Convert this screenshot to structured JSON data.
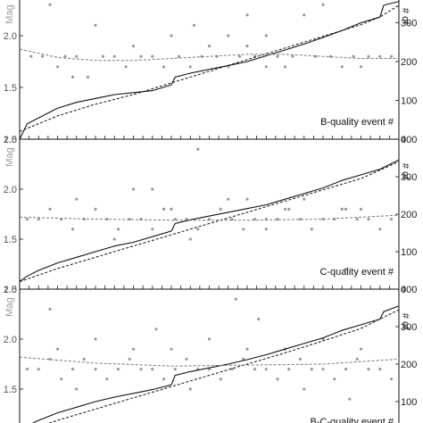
{
  "figure": {
    "panels": [
      {
        "xlabel": "B-quality event #",
        "ylabel_left": "Mag",
        "ylabel_right": "# of"
      },
      {
        "xlabel": "C-quality event #",
        "ylabel_left": "Mag",
        "ylabel_right": "# of"
      },
      {
        "xlabel": "B-C-quality event #",
        "ylabel_left": "Mag",
        "ylabel_right": "# of"
      }
    ]
  },
  "chart_data": [
    {
      "type": "scatter",
      "xlabel": "B-quality event #",
      "ylabel": "Mag",
      "ylabel_right": "# of",
      "xlim": [
        0,
        100
      ],
      "ylim": [
        1.0,
        2.5
      ],
      "ylim_right": [
        0,
        400
      ],
      "yticks": [
        "1.0",
        "1.5",
        "2.0"
      ],
      "yticks_right": [
        "0",
        "100",
        "200",
        "300"
      ],
      "colors": {
        "points": "#9a9a9a",
        "line": "#111111"
      },
      "series": [
        {
          "type": "scatter",
          "x": [
            3,
            6,
            8,
            12,
            15,
            18,
            22,
            25,
            28,
            32,
            35,
            38,
            42,
            45,
            48,
            52,
            55,
            58,
            62,
            65,
            68,
            72,
            75,
            78,
            82,
            85,
            88,
            92,
            95,
            98,
            10,
            30,
            50,
            70,
            90,
            20,
            40,
            60,
            80,
            55,
            60,
            65,
            14,
            46
          ],
          "y": [
            1.8,
            1.8,
            2.3,
            1.8,
            1.8,
            1.6,
            1.8,
            1.8,
            1.7,
            1.8,
            1.8,
            1.7,
            1.8,
            1.7,
            1.8,
            1.8,
            1.7,
            1.8,
            1.8,
            1.7,
            1.8,
            1.8,
            2.2,
            1.8,
            1.8,
            1.7,
            1.8,
            1.8,
            1.8,
            1.8,
            1.7,
            1.9,
            1.9,
            1.7,
            1.7,
            2.1,
            2.0,
            2.2,
            2.3,
            2.0,
            1.9,
            2.0,
            1.6,
            2.1
          ]
        },
        {
          "type": "line",
          "x": [
            0,
            2,
            5,
            10,
            15,
            20,
            25,
            30,
            35,
            40,
            41,
            45,
            50,
            55,
            60,
            65,
            70,
            75,
            80,
            85,
            90,
            95,
            96,
            100
          ],
          "y": [
            0,
            40,
            55,
            80,
            95,
            105,
            115,
            120,
            125,
            140,
            160,
            170,
            180,
            190,
            200,
            215,
            230,
            245,
            262,
            280,
            300,
            315,
            345,
            355
          ]
        },
        {
          "type": "line",
          "x": [
            0,
            5,
            10,
            20,
            30,
            40,
            50,
            60,
            70,
            80,
            90,
            95,
            100
          ],
          "y": [
            20,
            40,
            60,
            90,
            115,
            145,
            175,
            205,
            235,
            265,
            295,
            315,
            345
          ]
        },
        {
          "type": "line",
          "x": [
            0,
            10,
            20,
            30,
            40,
            50,
            60,
            70,
            80,
            90,
            100
          ],
          "y": [
            1.87,
            1.79,
            1.76,
            1.76,
            1.78,
            1.8,
            1.82,
            1.82,
            1.8,
            1.78,
            1.78
          ]
        }
      ]
    },
    {
      "type": "scatter",
      "xlabel": "C-quality event #",
      "ylabel": "Mag",
      "ylabel_right": "# of",
      "xlim": [
        0,
        100
      ],
      "ylim": [
        1.0,
        2.5
      ],
      "ylim_right": [
        0,
        400
      ],
      "yticks": [
        "1.0",
        "1.5",
        "2.0",
        "2.5"
      ],
      "yticks_right": [
        "0",
        "100",
        "200",
        "300",
        "400"
      ],
      "colors": {
        "points": "#9a9a9a",
        "line": "#111111"
      },
      "series": [
        {
          "type": "scatter",
          "x": [
            2,
            5,
            8,
            11,
            14,
            17,
            20,
            23,
            26,
            29,
            32,
            35,
            38,
            41,
            44,
            47,
            50,
            53,
            56,
            59,
            62,
            65,
            68,
            71,
            74,
            77,
            80,
            83,
            86,
            89,
            92,
            95,
            98,
            15,
            35,
            55,
            75,
            25,
            45,
            65,
            85,
            30,
            60,
            90,
            40,
            70,
            47,
            86
          ],
          "y": [
            1.7,
            1.7,
            1.8,
            1.7,
            1.6,
            1.7,
            1.8,
            1.7,
            1.6,
            1.7,
            1.7,
            1.6,
            1.8,
            1.7,
            1.7,
            1.6,
            1.7,
            1.8,
            1.7,
            1.6,
            1.7,
            1.7,
            1.7,
            1.8,
            1.7,
            1.6,
            1.7,
            1.7,
            1.8,
            1.7,
            1.7,
            1.6,
            1.7,
            1.9,
            2.0,
            1.9,
            1.9,
            1.5,
            1.5,
            1.6,
            1.8,
            2.0,
            1.9,
            1.8,
            1.8,
            1.8,
            2.4,
            1.2
          ]
        },
        {
          "type": "line",
          "x": [
            0,
            2,
            5,
            10,
            15,
            20,
            25,
            30,
            35,
            40,
            41,
            45,
            50,
            55,
            60,
            65,
            70,
            75,
            80,
            85,
            90,
            95,
            100
          ],
          "y": [
            20,
            35,
            50,
            70,
            85,
            100,
            115,
            125,
            140,
            155,
            175,
            185,
            195,
            205,
            215,
            225,
            240,
            255,
            270,
            290,
            305,
            320,
            345
          ]
        },
        {
          "type": "line",
          "x": [
            0,
            10,
            20,
            30,
            40,
            50,
            60,
            70,
            80,
            90,
            100
          ],
          "y": [
            20,
            55,
            85,
            115,
            145,
            175,
            205,
            235,
            265,
            295,
            340
          ]
        },
        {
          "type": "line",
          "x": [
            0,
            20,
            40,
            60,
            80,
            100
          ],
          "y": [
            1.72,
            1.7,
            1.69,
            1.69,
            1.7,
            1.74
          ]
        }
      ]
    },
    {
      "type": "scatter",
      "xlabel": "B-C-quality event #",
      "ylabel": "Mag",
      "ylabel_right": "# of",
      "xlim": [
        0,
        100
      ],
      "ylim": [
        1.0,
        2.5
      ],
      "ylim_right": [
        0,
        400
      ],
      "yticks": [
        "1.5",
        "2.0",
        "2.5"
      ],
      "yticks_right": [
        "100",
        "200",
        "300",
        "400"
      ],
      "colors": {
        "points": "#9a9a9a",
        "line": "#111111"
      },
      "series": [
        {
          "type": "scatter",
          "x": [
            2,
            5,
            8,
            11,
            14,
            17,
            20,
            23,
            26,
            29,
            32,
            35,
            38,
            41,
            44,
            47,
            50,
            53,
            56,
            59,
            62,
            65,
            68,
            71,
            74,
            77,
            80,
            83,
            86,
            89,
            92,
            95,
            98,
            10,
            20,
            30,
            40,
            50,
            60,
            70,
            80,
            90,
            15,
            45,
            75,
            8,
            36,
            63,
            57,
            87
          ],
          "y": [
            1.7,
            1.7,
            1.8,
            1.6,
            1.7,
            1.8,
            1.7,
            1.6,
            1.7,
            1.8,
            1.7,
            1.7,
            1.6,
            1.7,
            1.8,
            1.7,
            1.7,
            1.6,
            1.7,
            1.8,
            1.7,
            1.7,
            1.6,
            1.7,
            1.8,
            1.7,
            1.7,
            1.6,
            1.7,
            1.8,
            1.7,
            1.7,
            1.6,
            1.9,
            2.0,
            1.9,
            1.9,
            2.0,
            1.9,
            1.9,
            2.0,
            1.9,
            1.5,
            1.5,
            1.5,
            2.3,
            2.1,
            2.2,
            2.4,
            1.4
          ]
        },
        {
          "type": "line",
          "x": [
            0,
            2,
            5,
            10,
            15,
            20,
            25,
            30,
            35,
            40,
            41,
            45,
            50,
            55,
            60,
            65,
            70,
            75,
            80,
            85,
            90,
            95,
            96,
            100
          ],
          "y": [
            0,
            35,
            50,
            70,
            85,
            100,
            112,
            122,
            132,
            145,
            170,
            180,
            190,
            200,
            212,
            225,
            240,
            255,
            270,
            290,
            305,
            320,
            340,
            355
          ]
        },
        {
          "type": "line",
          "x": [
            0,
            10,
            20,
            30,
            40,
            50,
            60,
            70,
            80,
            90,
            100
          ],
          "y": [
            15,
            50,
            80,
            110,
            140,
            170,
            200,
            230,
            262,
            295,
            345
          ]
        },
        {
          "type": "line",
          "x": [
            0,
            20,
            40,
            60,
            80,
            100
          ],
          "y": [
            1.82,
            1.76,
            1.73,
            1.74,
            1.75,
            1.8
          ]
        }
      ]
    }
  ]
}
